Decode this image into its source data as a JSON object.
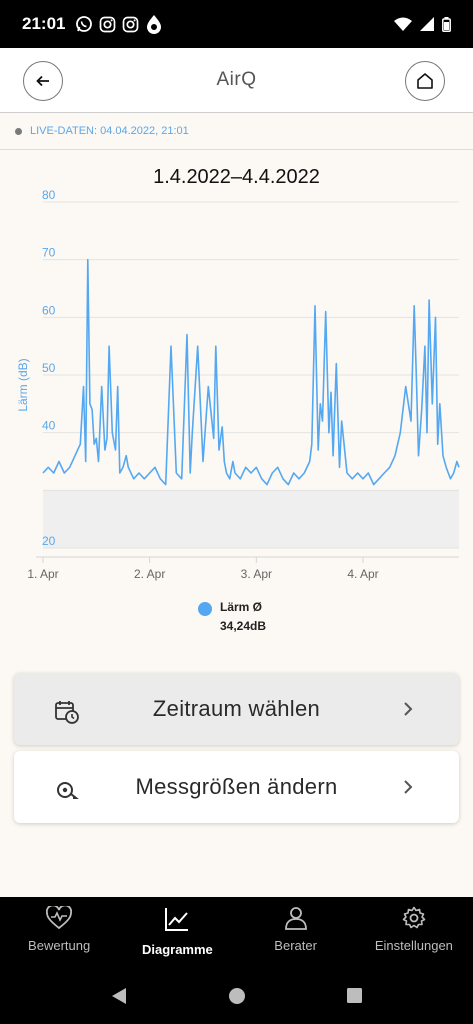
{
  "status_bar": {
    "time": "21:01",
    "icons": [
      "whatsapp-icon",
      "instagram-icon",
      "instagram-icon",
      "airq-drop-icon"
    ],
    "right_icons": [
      "wifi-icon",
      "signal-icon",
      "battery-icon"
    ]
  },
  "header": {
    "title": "AirQ",
    "back_icon": "arrow-left-icon",
    "home_icon": "home-icon"
  },
  "live": {
    "text": "LIVE-DATEN: 04.04.2022, 21:01"
  },
  "chart_data": {
    "type": "line",
    "title": "1.4.2022–4.4.2022",
    "ylabel": "Lärm (dB)",
    "xlabel": "",
    "ylim": [
      20,
      80
    ],
    "yticks": [
      20,
      30,
      40,
      50,
      60,
      70,
      80
    ],
    "ytick_labels": [
      "20",
      "",
      "40",
      "50",
      "60",
      "70",
      "80"
    ],
    "x_ticks": [
      {
        "day": 0,
        "label": "1. Apr"
      },
      {
        "day": 1,
        "label": "2. Apr"
      },
      {
        "day": 2,
        "label": "3. Apr"
      },
      {
        "day": 3,
        "label": "4. Apr"
      }
    ],
    "x_range_days": [
      0,
      3.9
    ],
    "grid": true,
    "reference_band_max": 30,
    "series": [
      {
        "name": "Lärm Ø",
        "color": "#54a8f2",
        "x_days": [
          0.0,
          0.05,
          0.1,
          0.15,
          0.2,
          0.25,
          0.3,
          0.35,
          0.38,
          0.4,
          0.42,
          0.44,
          0.46,
          0.48,
          0.5,
          0.52,
          0.55,
          0.58,
          0.6,
          0.62,
          0.65,
          0.68,
          0.7,
          0.72,
          0.75,
          0.78,
          0.8,
          0.85,
          0.9,
          0.95,
          1.0,
          1.05,
          1.1,
          1.15,
          1.2,
          1.25,
          1.3,
          1.35,
          1.38,
          1.4,
          1.45,
          1.5,
          1.55,
          1.6,
          1.62,
          1.65,
          1.68,
          1.7,
          1.72,
          1.75,
          1.78,
          1.8,
          1.85,
          1.9,
          1.95,
          2.0,
          2.05,
          2.1,
          2.15,
          2.2,
          2.25,
          2.3,
          2.35,
          2.4,
          2.45,
          2.5,
          2.52,
          2.55,
          2.58,
          2.6,
          2.62,
          2.65,
          2.68,
          2.7,
          2.72,
          2.75,
          2.78,
          2.8,
          2.85,
          2.9,
          2.95,
          3.0,
          3.05,
          3.1,
          3.15,
          3.2,
          3.25,
          3.3,
          3.35,
          3.4,
          3.45,
          3.48,
          3.5,
          3.52,
          3.55,
          3.58,
          3.6,
          3.62,
          3.65,
          3.68,
          3.7,
          3.72,
          3.75,
          3.78,
          3.8,
          3.82,
          3.85,
          3.88,
          3.9
        ],
        "values": [
          33,
          34,
          33,
          35,
          33,
          34,
          36,
          38,
          48,
          35,
          70,
          45,
          44,
          38,
          39,
          35,
          48,
          37,
          39,
          55,
          40,
          37,
          48,
          33,
          34,
          36,
          34,
          32,
          33,
          32,
          33,
          34,
          32,
          31,
          55,
          33,
          32,
          57,
          33,
          40,
          55,
          35,
          48,
          39,
          55,
          37,
          41,
          35,
          33,
          32,
          35,
          33,
          32,
          34,
          33,
          34,
          32,
          31,
          33,
          34,
          32,
          31,
          33,
          32,
          33,
          35,
          38,
          62,
          37,
          45,
          42,
          61,
          40,
          47,
          36,
          52,
          34,
          42,
          33,
          32,
          33,
          32,
          33,
          31,
          32,
          33,
          34,
          36,
          40,
          48,
          42,
          62,
          50,
          36,
          44,
          55,
          40,
          63,
          45,
          60,
          38,
          45,
          36,
          34,
          33,
          32,
          33,
          35,
          34
        ]
      }
    ]
  },
  "legend": {
    "label": "Lärm Ø",
    "value": "34,24dB"
  },
  "actions": {
    "timerange_label": "Zeitraum wählen",
    "timerange_icon": "calendar-clock-icon",
    "measures_label": "Messgrößen ändern",
    "measures_icon": "sensor-icon"
  },
  "bottom_nav": {
    "items": [
      {
        "label": "Bewertung",
        "icon": "heart-pulse-icon",
        "active": false
      },
      {
        "label": "Diagramme",
        "icon": "line-chart-icon",
        "active": true
      },
      {
        "label": "Berater",
        "icon": "person-icon",
        "active": false
      },
      {
        "label": "Einstellungen",
        "icon": "gear-icon",
        "active": false
      }
    ]
  },
  "system_nav": {
    "icons": [
      "back-triangle-icon",
      "home-circle-icon",
      "recents-square-icon"
    ]
  }
}
